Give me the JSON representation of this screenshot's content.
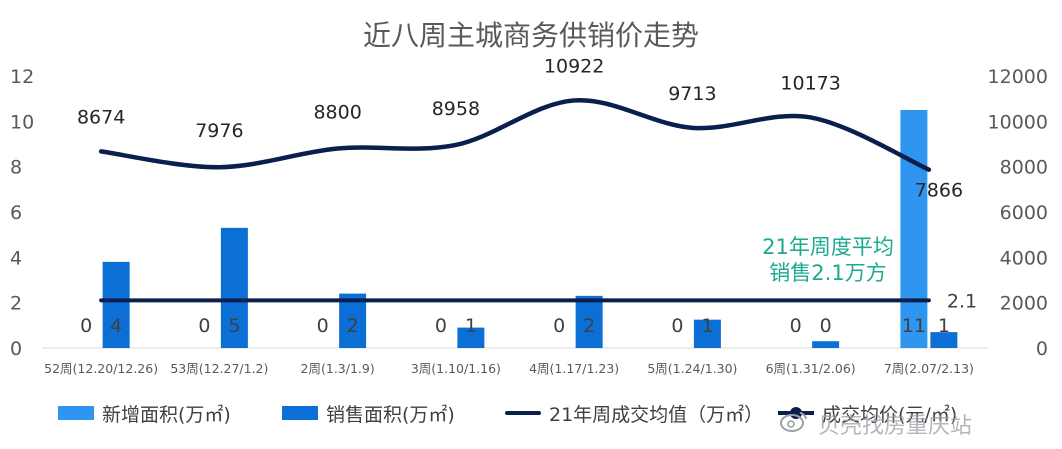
{
  "chart_data": {
    "type": "bar",
    "title": "近八周主城商务供销价走势",
    "categories": [
      "52周(12.20/12.26)",
      "53周(12.27/1.2)",
      "2周(1.3/1.9)",
      "3周(1.10/1.16)",
      "4周(1.17/1.23)",
      "5周(1.24/1.30)",
      "6周(1.31/2.06)",
      "7周(2.07/2.13)"
    ],
    "left_axis": {
      "ylim": [
        0,
        12
      ],
      "ticks": [
        "0",
        "2",
        "4",
        "6",
        "8",
        "10",
        "12"
      ]
    },
    "right_axis": {
      "ylim": [
        0,
        12000
      ],
      "ticks": [
        "0",
        "2000",
        "4000",
        "6000",
        "8000",
        "10000",
        "12000"
      ]
    },
    "series": [
      {
        "name": "新增面积(万㎡)",
        "kind": "bar",
        "axis": "left",
        "color": "#2e96f0",
        "values": [
          0,
          0,
          0,
          0,
          0,
          0,
          0,
          10.5
        ],
        "labels": [
          "0",
          "0",
          "0",
          "0",
          "0",
          "0",
          "0",
          "11"
        ]
      },
      {
        "name": "销售面积(万㎡)",
        "kind": "bar",
        "axis": "left",
        "color": "#0b6fd6",
        "values": [
          3.8,
          5.3,
          2.4,
          0.9,
          2.3,
          1.25,
          0.3,
          0.7
        ],
        "labels": [
          "4",
          "5",
          "2",
          "1",
          "2",
          "1",
          "0",
          "1"
        ]
      },
      {
        "name": "21年周成交均值（万㎡）",
        "kind": "line",
        "axis": "left",
        "color": "#0b1f4f",
        "values": [
          2.1,
          2.1,
          2.1,
          2.1,
          2.1,
          2.1,
          2.1,
          2.1
        ],
        "end_label": "2.1"
      },
      {
        "name": "成交均价(元/㎡)",
        "kind": "smooth-line",
        "axis": "right",
        "color": "#0b1f4f",
        "values": [
          8674,
          7976,
          8800,
          8958,
          10922,
          9713,
          10173,
          7866
        ],
        "labels": [
          "8674",
          "7976",
          "8800",
          "8958",
          "10922",
          "9713",
          "10173",
          "7866"
        ]
      }
    ],
    "annotation": {
      "lines": [
        "21年周度平均",
        "销售2.1万方"
      ],
      "color": "#1aaa8f"
    },
    "legend_position": "bottom",
    "grid": false
  },
  "watermark": "贝壳找房重庆站",
  "watermark_icon": "weibo-icon"
}
